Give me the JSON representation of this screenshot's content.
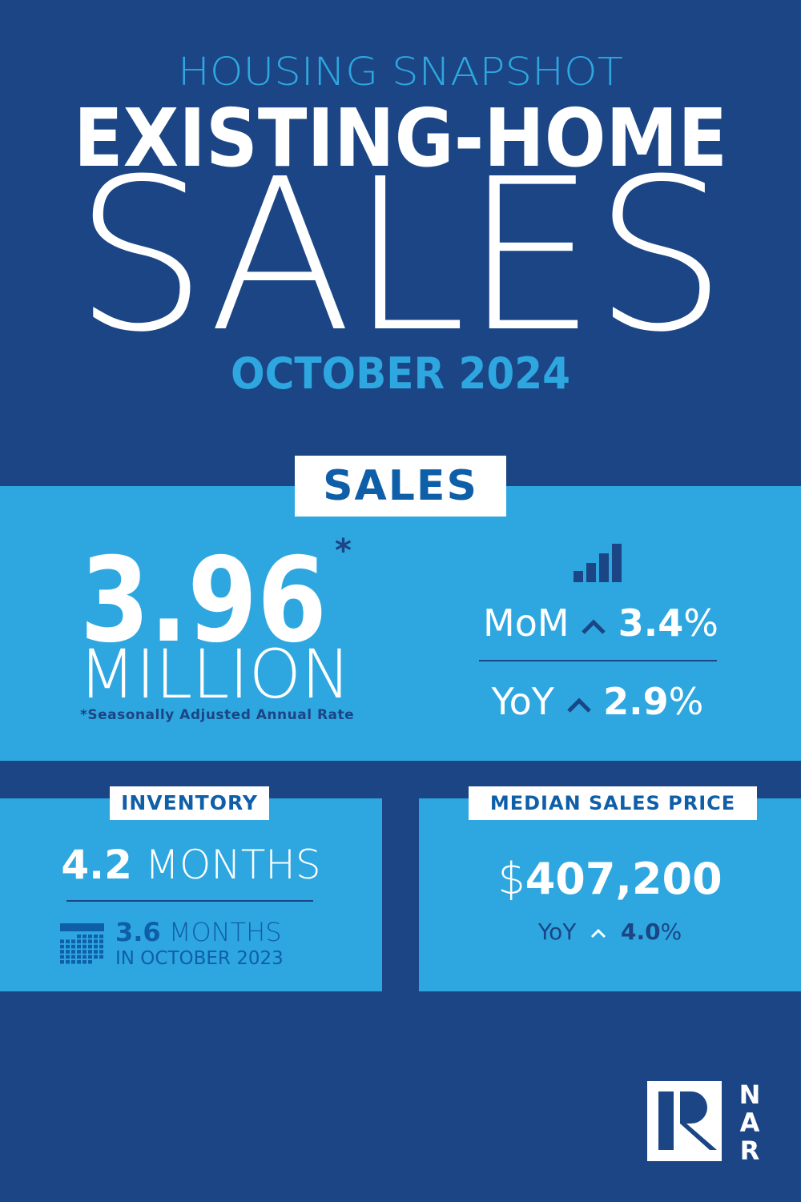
{
  "header": {
    "kicker": "HOUSING SNAPSHOT",
    "title_line1": "EXISTING-HOME",
    "title_line2": "SALES",
    "period": "OCTOBER 2024"
  },
  "sales": {
    "label": "SALES",
    "value": "3.96",
    "asterisk": "*",
    "unit": "MILLION",
    "footnote": "*Seasonally Adjusted Annual Rate",
    "mom_label": "MoM",
    "mom_value": "3.4",
    "yoy_label": "YoY",
    "yoy_value": "2.9",
    "percent": "%",
    "icon": "bar-chart-icon",
    "trend_icon": "chevron-up-icon"
  },
  "inventory": {
    "label": "INVENTORY",
    "value": "4.2",
    "unit": "MONTHS",
    "prior_value": "3.6",
    "prior_unit": "MONTHS",
    "prior_period": "IN OCTOBER 2023",
    "icon": "calendar-icon"
  },
  "median_price": {
    "label": "MEDIAN SALES PRICE",
    "currency": "$",
    "value": "407,200",
    "yoy_label": "YoY",
    "yoy_value": "4.0",
    "percent": "%"
  },
  "logo": {
    "text": "NAR",
    "letters": [
      "N",
      "A",
      "R"
    ]
  },
  "colors": {
    "background": "#1b4584",
    "accent": "#2ea7e0",
    "dark_text": "#0f4f8f",
    "white": "#ffffff"
  }
}
